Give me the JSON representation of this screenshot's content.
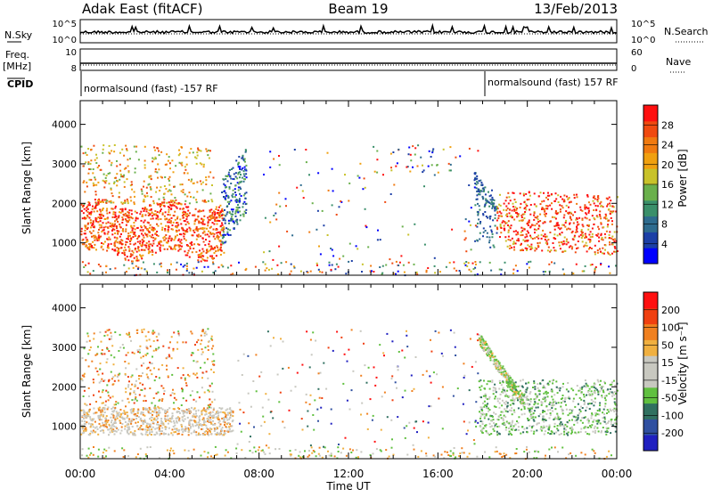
{
  "header": {
    "station": "Adak East (fitACF)",
    "beam": "Beam 19",
    "date": "13/Feb/2013"
  },
  "top_panels": {
    "nsky_label": "N.Sky",
    "nsky_ticks": [
      "10^5",
      "10^0"
    ],
    "nsearch_label": "N.Search",
    "nsearch_ticks": [
      "10^5",
      "10^0"
    ],
    "freq_label": "Freq.",
    "freq_unit": "[MHz]",
    "freq_ticks": [
      "10",
      "8"
    ],
    "nave_label": "Nave",
    "nave_ticks": [
      "60",
      "0"
    ],
    "cpid_label": "CPID",
    "cpid_left": "normalsound (fast) -157 RF",
    "cpid_right": "normalsound (fast) 157 RF",
    "cpid_switch_hour": 18.1
  },
  "chart_data": [
    {
      "type": "heatmap",
      "name": "power",
      "ylabel": "Slant Range [km]",
      "xlabel": "Time UT",
      "x_ticks": [
        "00:00",
        "04:00",
        "08:00",
        "12:00",
        "16:00",
        "20:00",
        "00:00"
      ],
      "x_range_hours": [
        0,
        24
      ],
      "y_ticks": [
        "1000",
        "2000",
        "3000",
        "4000"
      ],
      "y_range_km": [
        180,
        4600
      ],
      "colorbar": {
        "label": "Power [dB]",
        "ticks": [
          "28",
          "24",
          "20",
          "16",
          "12",
          "8",
          "4"
        ],
        "range": [
          0,
          32
        ],
        "colors": [
          "#0000ff",
          "#1c3fa6",
          "#2e6b8e",
          "#3a8f6a",
          "#6ab04c",
          "#c8c22a",
          "#f0a010",
          "#f07a10",
          "#f04a10",
          "#ff1010"
        ]
      }
    },
    {
      "type": "heatmap",
      "name": "velocity",
      "ylabel": "Slant Range [km]",
      "xlabel": "Time UT",
      "x_ticks": [
        "00:00",
        "04:00",
        "08:00",
        "12:00",
        "16:00",
        "20:00",
        "00:00"
      ],
      "x_range_hours": [
        0,
        24
      ],
      "y_ticks": [
        "1000",
        "2000",
        "3000",
        "4000"
      ],
      "y_range_km": [
        180,
        4600
      ],
      "colorbar": {
        "label": "Velocity [m s⁻¹]",
        "ticks": [
          "200",
          "100",
          "50",
          "15",
          "-15",
          "-50",
          "-100",
          "-200"
        ],
        "colors": [
          "#2020c0",
          "#3050a0",
          "#307060",
          "#60c040",
          "#c8c8c0",
          "#c8c8c0",
          "#f0b040",
          "#f08020",
          "#f04010",
          "#ff1010"
        ]
      }
    }
  ]
}
